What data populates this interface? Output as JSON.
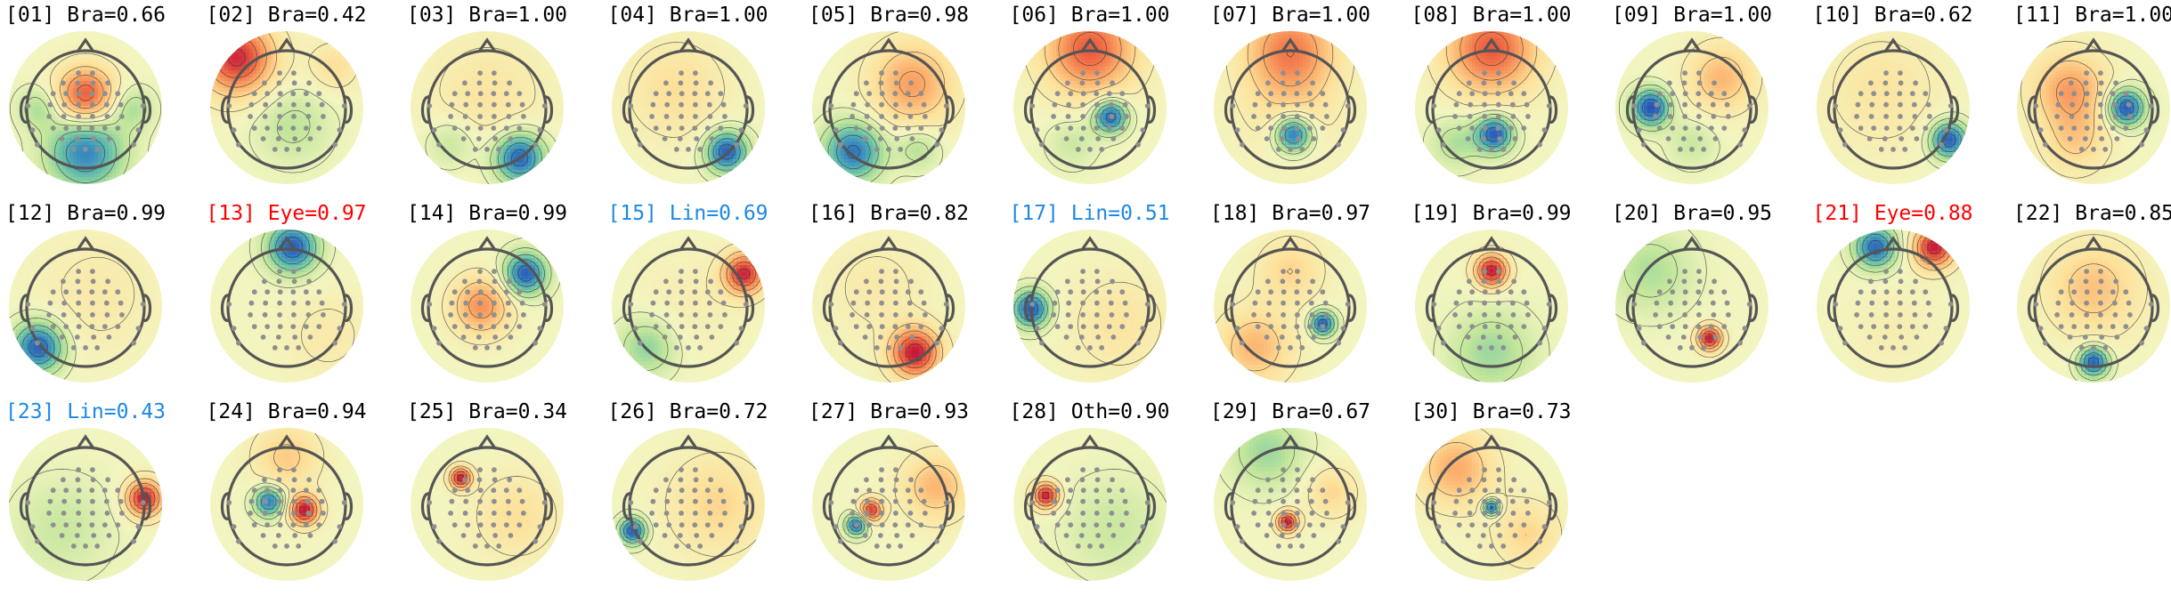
{
  "colors": {
    "brain": "#000000",
    "eye": "#ff0000",
    "line_noise": "#1e88e5",
    "other": "#000000"
  },
  "colormap": [
    "#2b4fb5",
    "#3a8fbf",
    "#6cc3a6",
    "#bfe59a",
    "#f3f5c0",
    "#fde19a",
    "#fbad6a",
    "#ef6a43",
    "#c61a3a"
  ],
  "components": [
    {
      "title": "[01] Bra=0.66",
      "class": "brain",
      "blobs": [
        [
          0.0,
          -0.2,
          0.35,
          0.85
        ],
        [
          0.0,
          0.75,
          0.45,
          -0.8
        ],
        [
          0.8,
          0.0,
          0.25,
          -0.3
        ],
        [
          -0.8,
          0.0,
          0.25,
          -0.3
        ]
      ]
    },
    {
      "title": "[02] Bra=0.42",
      "class": "brain",
      "blobs": [
        [
          -0.85,
          -0.85,
          0.45,
          0.95
        ],
        [
          0.1,
          0.3,
          0.45,
          -0.25
        ],
        [
          0.8,
          -0.7,
          0.3,
          0.25
        ]
      ]
    },
    {
      "title": "[03] Bra=1.00",
      "class": "brain",
      "blobs": [
        [
          0.55,
          0.85,
          0.3,
          -0.95
        ],
        [
          0.0,
          -0.2,
          0.7,
          0.2
        ],
        [
          -0.6,
          0.6,
          0.3,
          -0.25
        ]
      ]
    },
    {
      "title": "[04] Bra=1.00",
      "class": "brain",
      "blobs": [
        [
          0.65,
          0.75,
          0.25,
          -0.95
        ],
        [
          -0.2,
          -0.3,
          0.6,
          0.25
        ]
      ]
    },
    {
      "title": "[05] Bra=0.98",
      "class": "brain",
      "blobs": [
        [
          -0.6,
          0.75,
          0.35,
          -0.85
        ],
        [
          0.4,
          -0.4,
          0.5,
          0.55
        ],
        [
          0.5,
          0.7,
          0.25,
          -0.3
        ]
      ]
    },
    {
      "title": "[06] Bra=1.00",
      "class": "brain",
      "blobs": [
        [
          0.0,
          -1.0,
          0.55,
          0.8
        ],
        [
          0.35,
          0.15,
          0.2,
          -0.95
        ],
        [
          -0.3,
          0.6,
          0.3,
          -0.2
        ]
      ]
    },
    {
      "title": "[07] Bra=1.00",
      "class": "brain",
      "blobs": [
        [
          0.0,
          -1.0,
          0.55,
          0.65
        ],
        [
          0.05,
          0.45,
          0.22,
          -0.95
        ],
        [
          0.0,
          0.0,
          0.6,
          0.2
        ]
      ]
    },
    {
      "title": "[08] Bra=1.00",
      "class": "brain",
      "blobs": [
        [
          0.0,
          -1.0,
          0.55,
          0.8
        ],
        [
          0.05,
          0.45,
          0.22,
          -0.95
        ],
        [
          -0.6,
          0.6,
          0.3,
          -0.3
        ]
      ]
    },
    {
      "title": "[09] Bra=1.00",
      "class": "brain",
      "blobs": [
        [
          -0.7,
          0.0,
          0.22,
          -1.0
        ],
        [
          0.5,
          -0.5,
          0.4,
          0.45
        ],
        [
          0.0,
          0.6,
          0.3,
          -0.2
        ]
      ]
    },
    {
      "title": "[10] Bra=0.62",
      "class": "brain",
      "blobs": [
        [
          0.95,
          0.55,
          0.22,
          -0.95
        ],
        [
          -0.2,
          -0.3,
          0.7,
          0.2
        ]
      ]
    },
    {
      "title": "[11] Bra=1.00",
      "class": "brain",
      "blobs": [
        [
          0.55,
          0.0,
          0.22,
          -1.0
        ],
        [
          -0.4,
          -0.3,
          0.45,
          0.55
        ],
        [
          -0.3,
          0.6,
          0.4,
          0.3
        ]
      ]
    },
    {
      "title": "[12] Bra=0.99",
      "class": "brain",
      "blobs": [
        [
          -0.8,
          0.7,
          0.3,
          -0.95
        ],
        [
          0.2,
          -0.2,
          0.7,
          0.15
        ]
      ]
    },
    {
      "title": "[13] Eye=0.97",
      "class": "eye",
      "blobs": [
        [
          0.1,
          -1.0,
          0.3,
          -0.95
        ],
        [
          0.7,
          0.5,
          0.5,
          0.15
        ]
      ]
    },
    {
      "title": "[14] Bra=0.99",
      "class": "brain",
      "blobs": [
        [
          0.65,
          -0.55,
          0.25,
          -0.95
        ],
        [
          -0.1,
          0.0,
          0.35,
          0.6
        ]
      ]
    },
    {
      "title": "[15] Lin=0.69",
      "class": "line_noise",
      "blobs": [
        [
          0.95,
          -0.55,
          0.25,
          0.95
        ],
        [
          -0.7,
          0.7,
          0.35,
          -0.4
        ],
        [
          0.0,
          0.0,
          0.6,
          0.1
        ]
      ]
    },
    {
      "title": "[16] Bra=0.82",
      "class": "brain",
      "blobs": [
        [
          0.45,
          0.8,
          0.3,
          1.0
        ],
        [
          -0.2,
          -0.3,
          0.6,
          0.15
        ]
      ]
    },
    {
      "title": "[17] Lin=0.51",
      "class": "line_noise",
      "blobs": [
        [
          -1.0,
          0.05,
          0.22,
          -0.95
        ],
        [
          0.5,
          0.3,
          0.6,
          0.2
        ]
      ]
    },
    {
      "title": "[18] Bra=0.97",
      "class": "brain",
      "blobs": [
        [
          0.55,
          0.3,
          0.15,
          -0.95
        ],
        [
          -0.6,
          0.7,
          0.45,
          0.45
        ],
        [
          0.0,
          -0.6,
          0.4,
          0.3
        ]
      ]
    },
    {
      "title": "[19] Bra=0.99",
      "class": "brain",
      "blobs": [
        [
          0.0,
          -0.6,
          0.2,
          1.0
        ],
        [
          0.0,
          0.8,
          0.5,
          -0.35
        ]
      ]
    },
    {
      "title": "[20] Bra=0.95",
      "class": "brain",
      "blobs": [
        [
          0.3,
          0.55,
          0.15,
          1.0
        ],
        [
          -0.7,
          -0.6,
          0.5,
          -0.3
        ]
      ]
    },
    {
      "title": "[21] Eye=0.88",
      "class": "eye",
      "blobs": [
        [
          0.7,
          -1.0,
          0.25,
          1.0
        ],
        [
          -0.3,
          -1.0,
          0.25,
          -0.9
        ],
        [
          0.0,
          0.4,
          0.5,
          0.1
        ]
      ]
    },
    {
      "title": "[22] Bra=0.85",
      "class": "brain",
      "blobs": [
        [
          0.0,
          0.95,
          0.18,
          -0.95
        ],
        [
          0.0,
          -0.3,
          0.55,
          0.4
        ]
      ]
    },
    {
      "title": "[23] Lin=0.43",
      "class": "line_noise",
      "blobs": [
        [
          1.0,
          -0.1,
          0.22,
          1.0
        ],
        [
          -0.4,
          0.4,
          0.6,
          -0.2
        ]
      ]
    },
    {
      "title": "[24] Bra=0.94",
      "class": "brain",
      "blobs": [
        [
          0.3,
          0.1,
          0.18,
          1.0
        ],
        [
          -0.3,
          -0.05,
          0.18,
          -0.85
        ],
        [
          0.0,
          -0.8,
          0.4,
          0.35
        ]
      ]
    },
    {
      "title": "[25] Bra=0.34",
      "class": "brain",
      "blobs": [
        [
          -0.45,
          -0.45,
          0.13,
          1.0
        ],
        [
          0.5,
          0.2,
          0.5,
          0.25
        ]
      ]
    },
    {
      "title": "[26] Bra=0.72",
      "class": "brain",
      "blobs": [
        [
          -0.95,
          0.45,
          0.16,
          -0.95
        ],
        [
          0.5,
          0.0,
          0.6,
          0.3
        ]
      ]
    },
    {
      "title": "[27] Bra=0.93",
      "class": "brain",
      "blobs": [
        [
          -0.3,
          0.1,
          0.14,
          0.9
        ],
        [
          -0.55,
          0.35,
          0.13,
          -0.9
        ],
        [
          0.8,
          -0.3,
          0.4,
          0.45
        ]
      ]
    },
    {
      "title": "[28] Oth=0.90",
      "class": "other",
      "blobs": [
        [
          -0.75,
          -0.15,
          0.16,
          1.0
        ],
        [
          0.4,
          0.4,
          0.6,
          -0.2
        ]
      ]
    },
    {
      "title": "[29] Bra=0.67",
      "class": "brain",
      "blobs": [
        [
          -0.05,
          0.3,
          0.13,
          1.0
        ],
        [
          -0.4,
          -0.9,
          0.45,
          -0.35
        ],
        [
          0.7,
          -0.2,
          0.3,
          0.3
        ]
      ]
    },
    {
      "title": "[30] Bra=0.73",
      "class": "brain",
      "blobs": [
        [
          0.0,
          0.05,
          0.1,
          -1.0
        ],
        [
          -0.6,
          -0.6,
          0.45,
          0.5
        ],
        [
          0.6,
          0.5,
          0.4,
          0.3
        ]
      ]
    }
  ]
}
